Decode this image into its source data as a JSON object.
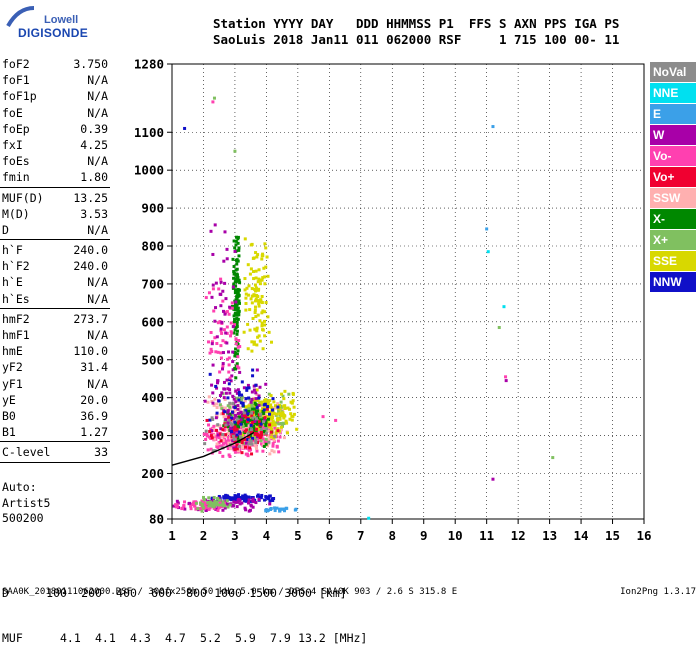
{
  "logo": {
    "line1": "Lowell",
    "line2": "DIGISONDE"
  },
  "header": {
    "line1": "Station YYYY DAY   DDD HHMMSS P1  FFS S AXN PPS IGA PS",
    "line2": "SaoLuis 2018 Jan11 011 062000 RSF     1 715 100 00- 11"
  },
  "params": [
    {
      "label": "foF2",
      "value": "3.750"
    },
    {
      "label": "foF1",
      "value": "N/A"
    },
    {
      "label": "foF1p",
      "value": "N/A"
    },
    {
      "label": "foE",
      "value": "N/A"
    },
    {
      "label": "foEp",
      "value": "0.39"
    },
    {
      "label": "fxI",
      "value": "4.25"
    },
    {
      "label": "foEs",
      "value": "N/A"
    },
    {
      "label": "fmin",
      "value": "1.80"
    },
    {
      "sep": true
    },
    {
      "label": "MUF(D)",
      "value": "13.25"
    },
    {
      "label": "M(D)",
      "value": "3.53"
    },
    {
      "label": "D",
      "value": "N/A"
    },
    {
      "sep": true
    },
    {
      "label": "h`F",
      "value": "240.0"
    },
    {
      "label": "h`F2",
      "value": "240.0"
    },
    {
      "label": "h`E",
      "value": "N/A"
    },
    {
      "label": "h`Es",
      "value": "N/A"
    },
    {
      "sep": true
    },
    {
      "label": "hmF2",
      "value": "273.7"
    },
    {
      "label": "hmF1",
      "value": "N/A"
    },
    {
      "label": "hmE",
      "value": "110.0"
    },
    {
      "label": "yF2",
      "value": "31.4"
    },
    {
      "label": "yF1",
      "value": "N/A"
    },
    {
      "label": "yE",
      "value": "20.0"
    },
    {
      "label": "B0",
      "value": "36.9"
    },
    {
      "label": "B1",
      "value": "1.27"
    },
    {
      "sep": true
    },
    {
      "label": "C-level",
      "value": "33"
    },
    {
      "sep": true
    }
  ],
  "auto": {
    "line1": "Auto:",
    "line2": "Artist5",
    "line3": "500200"
  },
  "legend": [
    {
      "label": "NoVal",
      "bg": "#8c8c8c",
      "fg": "#ffffff"
    },
    {
      "label": "NNE",
      "bg": "#00e0f0",
      "fg": "#ffffff"
    },
    {
      "label": "E",
      "bg": "#3ba0e8",
      "fg": "#ffffff"
    },
    {
      "label": "W",
      "bg": "#a800a8",
      "fg": "#ffffff"
    },
    {
      "label": "Vo-",
      "bg": "#ff40b0",
      "fg": "#ffffff"
    },
    {
      "label": "Vo+",
      "bg": "#f00030",
      "fg": "#ffffff"
    },
    {
      "label": "SSW",
      "bg": "#ffb0b0",
      "fg": "#ffffff"
    },
    {
      "label": "X-",
      "bg": "#008800",
      "fg": "#ffffff"
    },
    {
      "label": "X+",
      "bg": "#80c060",
      "fg": "#ffffff"
    },
    {
      "label": "SSE",
      "bg": "#d8d800",
      "fg": "#ffffff"
    },
    {
      "label": "NNW",
      "bg": "#1010c8",
      "fg": "#ffffff"
    }
  ],
  "muf_table": {
    "d_label": "D",
    "muf_label": "MUF",
    "d_values": [
      "100",
      "200",
      "400",
      "600",
      "800",
      "1000",
      "1500",
      "3000"
    ],
    "d_unit": "[km]",
    "muf_values": [
      "4.1",
      "4.1",
      "4.3",
      "4.7",
      "5.2",
      "5.9",
      "7.9",
      "13.2"
    ],
    "muf_unit": "[MHz]"
  },
  "footer": {
    "text": "SAA0K_20180111062000.RSF / 300fx256h 50 kHz 5.0 km / DPS-4 SAA0K 903 / 2.6 S 315.8 E",
    "version": "Ion2Png 1.3.17"
  },
  "chart_data": {
    "type": "scatter",
    "xlim": [
      1,
      16
    ],
    "ylim": [
      80,
      1280
    ],
    "x_ticks": [
      1,
      2,
      3,
      4,
      5,
      6,
      7,
      8,
      9,
      10,
      11,
      12,
      13,
      14,
      15,
      16
    ],
    "y_ticks": [
      80,
      200,
      300,
      400,
      500,
      600,
      700,
      800,
      900,
      1000,
      1100,
      1280
    ],
    "xlabel": "",
    "ylabel": "",
    "grid": true,
    "legend_position": "right",
    "trace": {
      "x": [
        1.0,
        2.0,
        3.0,
        3.6
      ],
      "y": [
        222,
        245,
        280,
        308
      ]
    },
    "clusters": [
      {
        "name": "Vo-",
        "x": [
          1.9,
          4.6
        ],
        "y": [
          240,
          360
        ],
        "n": 320,
        "color": "#ff40b0"
      },
      {
        "name": "SSW",
        "x": [
          2.0,
          4.7
        ],
        "y": [
          250,
          410
        ],
        "n": 220,
        "color": "#ffb0b0"
      },
      {
        "name": "X+",
        "x": [
          2.4,
          4.9
        ],
        "y": [
          270,
          420
        ],
        "n": 140,
        "color": "#80c060"
      },
      {
        "name": "SSE",
        "x": [
          3.2,
          5.2
        ],
        "y": [
          280,
          430
        ],
        "n": 140,
        "color": "#d8d800"
      },
      {
        "name": "X-",
        "x": [
          2.6,
          4.3
        ],
        "y": [
          270,
          400
        ],
        "n": 90,
        "color": "#008800"
      },
      {
        "name": "W",
        "x": [
          1.8,
          4.2
        ],
        "y": [
          250,
          500
        ],
        "n": 90,
        "color": "#a800a8"
      },
      {
        "name": "Vo+",
        "x": [
          1.9,
          4.5
        ],
        "y": [
          250,
          380
        ],
        "n": 70,
        "color": "#f00030"
      },
      {
        "name": "NNW",
        "x": [
          2.0,
          4.5
        ],
        "y": [
          260,
          500
        ],
        "n": 50,
        "color": "#1010c8"
      },
      {
        "name": "X- column",
        "x": [
          2.9,
          3.2
        ],
        "y": [
          430,
          850
        ],
        "n": 120,
        "color": "#008800"
      },
      {
        "name": "SSE column",
        "x": [
          3.2,
          4.2
        ],
        "y": [
          500,
          860
        ],
        "n": 110,
        "color": "#d8d800"
      },
      {
        "name": "Vo- column",
        "x": [
          2.0,
          3.3
        ],
        "y": [
          420,
          720
        ],
        "n": 60,
        "color": "#ff40b0"
      },
      {
        "name": "W column",
        "x": [
          2.0,
          3.2
        ],
        "y": [
          420,
          940
        ],
        "n": 40,
        "color": "#a800a8"
      },
      {
        "name": "NNW E-layer",
        "x": [
          2.0,
          4.5
        ],
        "y": [
          125,
          145
        ],
        "n": 90,
        "color": "#1010c8"
      },
      {
        "name": "W E-layer",
        "x": [
          1.0,
          4.2
        ],
        "y": [
          100,
          140
        ],
        "n": 80,
        "color": "#a800a8"
      },
      {
        "name": "Vo- E-layer",
        "x": [
          1.0,
          3.0
        ],
        "y": [
          100,
          130
        ],
        "n": 50,
        "color": "#ff40b0"
      },
      {
        "name": "X+ E-layer",
        "x": [
          1.6,
          2.9
        ],
        "y": [
          100,
          140
        ],
        "n": 40,
        "color": "#80c060"
      },
      {
        "name": "E E-layer",
        "x": [
          3.8,
          5.0
        ],
        "y": [
          100,
          110
        ],
        "n": 25,
        "color": "#3ba0e8"
      },
      {
        "name": "NoVal",
        "x": [
          1.8,
          4.5
        ],
        "y": [
          240,
          400
        ],
        "n": 40,
        "color": "#8c8c8c"
      }
    ],
    "outliers": [
      {
        "x": 1.4,
        "y": 1110,
        "color": "#1010c8"
      },
      {
        "x": 2.3,
        "y": 1180,
        "color": "#ff40b0"
      },
      {
        "x": 2.35,
        "y": 1190,
        "color": "#80c060"
      },
      {
        "x": 3.0,
        "y": 1050,
        "color": "#80c060"
      },
      {
        "x": 11.2,
        "y": 1115,
        "color": "#3ba0e8"
      },
      {
        "x": 11.0,
        "y": 845,
        "color": "#3ba0e8"
      },
      {
        "x": 11.05,
        "y": 785,
        "color": "#00e0f0"
      },
      {
        "x": 11.55,
        "y": 640,
        "color": "#00e0f0"
      },
      {
        "x": 11.4,
        "y": 585,
        "color": "#80c060"
      },
      {
        "x": 11.6,
        "y": 455,
        "color": "#ff40b0"
      },
      {
        "x": 11.62,
        "y": 445,
        "color": "#a800a8"
      },
      {
        "x": 11.2,
        "y": 185,
        "color": "#a800a8"
      },
      {
        "x": 13.1,
        "y": 242,
        "color": "#80c060"
      },
      {
        "x": 7.25,
        "y": 82,
        "color": "#00e0f0"
      },
      {
        "x": 6.2,
        "y": 340,
        "color": "#ff40b0"
      },
      {
        "x": 5.8,
        "y": 350,
        "color": "#ff40b0"
      }
    ]
  }
}
